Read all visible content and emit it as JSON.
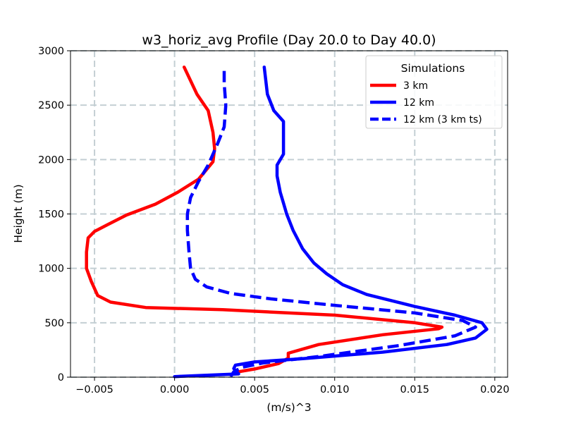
{
  "chart_data": {
    "type": "line",
    "title": "w3_horiz_avg Profile (Day 20.0 to Day 40.0)",
    "xlabel": "(m/s)^3",
    "ylabel": "Height (m)",
    "xlim": [
      -0.0065,
      0.0208
    ],
    "ylim": [
      0,
      3000
    ],
    "xticks": [
      -0.005,
      0.0,
      0.005,
      0.01,
      0.015,
      0.02
    ],
    "xtick_labels": [
      "−0.005",
      "0.000",
      "0.005",
      "0.010",
      "0.015",
      "0.020"
    ],
    "yticks": [
      0,
      500,
      1000,
      1500,
      2000,
      2500,
      3000
    ],
    "ytick_labels": [
      "0",
      "500",
      "1000",
      "1500",
      "2000",
      "2500",
      "3000"
    ],
    "grid": true,
    "legend": {
      "title": "Simulations",
      "position": "upper right"
    },
    "series": [
      {
        "name": "3 km",
        "color": "#ff0000",
        "style": "solid",
        "points": [
          [
            0.0036,
            25
          ],
          [
            0.004,
            50
          ],
          [
            0.005,
            75
          ],
          [
            0.0065,
            125
          ],
          [
            0.0071,
            175
          ],
          [
            0.0071,
            220
          ],
          [
            0.009,
            300
          ],
          [
            0.013,
            390
          ],
          [
            0.0165,
            445
          ],
          [
            0.0167,
            460
          ],
          [
            0.015,
            500
          ],
          [
            0.01,
            570
          ],
          [
            0.003,
            620
          ],
          [
            -0.0018,
            640
          ],
          [
            -0.004,
            690
          ],
          [
            -0.0048,
            750
          ],
          [
            -0.0052,
            880
          ],
          [
            -0.0055,
            1000
          ],
          [
            -0.0055,
            1150
          ],
          [
            -0.0054,
            1280
          ],
          [
            -0.005,
            1340
          ],
          [
            -0.0042,
            1400
          ],
          [
            -0.003,
            1490
          ],
          [
            -0.0012,
            1590
          ],
          [
            0.0002,
            1700
          ],
          [
            0.0015,
            1820
          ],
          [
            0.0024,
            1980
          ],
          [
            0.0025,
            2100
          ],
          [
            0.0024,
            2250
          ],
          [
            0.0021,
            2450
          ],
          [
            0.0014,
            2600
          ],
          [
            0.0006,
            2850
          ]
        ]
      },
      {
        "name": "12 km",
        "color": "#0000ff",
        "style": "solid",
        "points": [
          [
            0.0,
            5
          ],
          [
            0.004,
            30
          ],
          [
            0.0037,
            80
          ],
          [
            0.0038,
            110
          ],
          [
            0.005,
            140
          ],
          [
            0.008,
            170
          ],
          [
            0.013,
            230
          ],
          [
            0.017,
            300
          ],
          [
            0.0188,
            360
          ],
          [
            0.0195,
            440
          ],
          [
            0.0192,
            500
          ],
          [
            0.0175,
            570
          ],
          [
            0.015,
            650
          ],
          [
            0.012,
            760
          ],
          [
            0.0105,
            850
          ],
          [
            0.0095,
            950
          ],
          [
            0.0087,
            1050
          ],
          [
            0.008,
            1180
          ],
          [
            0.0074,
            1350
          ],
          [
            0.007,
            1500
          ],
          [
            0.0068,
            1600
          ],
          [
            0.0066,
            1700
          ],
          [
            0.0064,
            1850
          ],
          [
            0.0064,
            1950
          ],
          [
            0.0068,
            2050
          ],
          [
            0.0068,
            2200
          ],
          [
            0.0068,
            2350
          ],
          [
            0.0062,
            2450
          ],
          [
            0.0058,
            2600
          ],
          [
            0.0056,
            2850
          ]
        ]
      },
      {
        "name": "12 km (3 km ts)",
        "color": "#0000ff",
        "style": "dashed",
        "points": [
          [
            0.0035,
            5
          ],
          [
            0.0037,
            50
          ],
          [
            0.0042,
            90
          ],
          [
            0.0055,
            130
          ],
          [
            0.009,
            190
          ],
          [
            0.014,
            290
          ],
          [
            0.0175,
            380
          ],
          [
            0.0188,
            460
          ],
          [
            0.018,
            520
          ],
          [
            0.015,
            590
          ],
          [
            0.01,
            660
          ],
          [
            0.006,
            720
          ],
          [
            0.0035,
            770
          ],
          [
            0.002,
            830
          ],
          [
            0.0013,
            900
          ],
          [
            0.001,
            1000
          ],
          [
            0.0009,
            1150
          ],
          [
            0.0008,
            1350
          ],
          [
            0.0008,
            1500
          ],
          [
            0.001,
            1650
          ],
          [
            0.0015,
            1800
          ],
          [
            0.0021,
            1950
          ],
          [
            0.0027,
            2150
          ],
          [
            0.0031,
            2300
          ],
          [
            0.0032,
            2500
          ],
          [
            0.0031,
            2700
          ],
          [
            0.0031,
            2850
          ]
        ]
      }
    ]
  }
}
